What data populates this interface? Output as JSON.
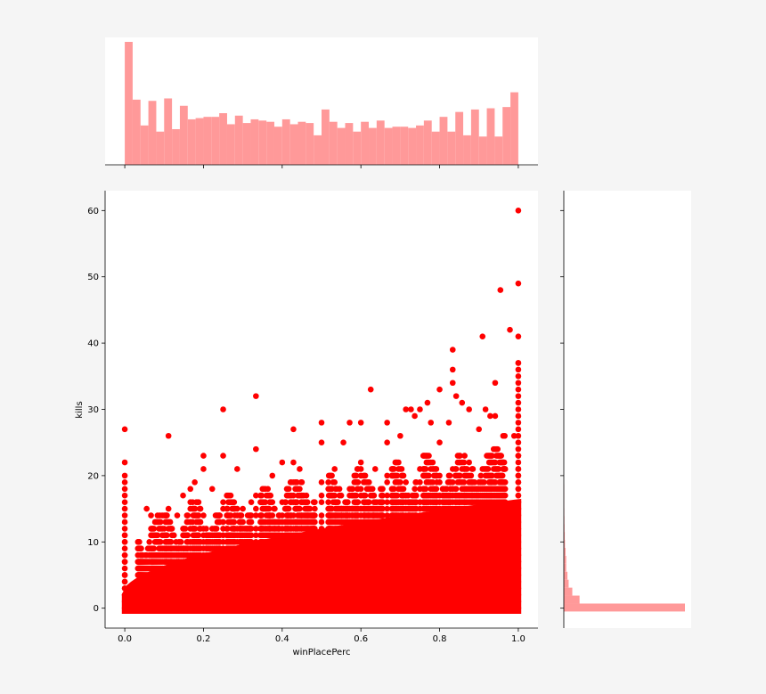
{
  "chart_data": {
    "type": "scatter",
    "title": "",
    "xlabel": "winPlacePerc",
    "ylabel": "kills",
    "xlim": [
      -0.05,
      1.05
    ],
    "ylim": [
      -3,
      63
    ],
    "x_ticks": [
      0.0,
      0.2,
      0.4,
      0.6,
      0.8,
      1.0
    ],
    "x_tick_labels": [
      "0.0",
      "0.2",
      "0.4",
      "0.6",
      "0.8",
      "1.0"
    ],
    "y_ticks": [
      0,
      10,
      20,
      30,
      40,
      50,
      60
    ],
    "y_tick_labels": [
      "0",
      "10",
      "20",
      "30",
      "40",
      "50",
      "60"
    ],
    "grid": false,
    "point_color": "#ff0000",
    "hist_color": "#ff9999",
    "scatter_max_kills": [
      [
        0.0,
        27
      ],
      [
        0.0,
        22
      ],
      [
        0.0333,
        8
      ],
      [
        0.0556,
        15
      ],
      [
        0.0667,
        14
      ],
      [
        0.0889,
        14
      ],
      [
        0.1111,
        26
      ],
      [
        0.1111,
        15
      ],
      [
        0.1333,
        14
      ],
      [
        0.1481,
        17
      ],
      [
        0.1667,
        18
      ],
      [
        0.1778,
        19
      ],
      [
        0.2,
        23
      ],
      [
        0.2,
        21
      ],
      [
        0.2222,
        18
      ],
      [
        0.25,
        30
      ],
      [
        0.25,
        23
      ],
      [
        0.2857,
        21
      ],
      [
        0.3,
        15
      ],
      [
        0.3333,
        32
      ],
      [
        0.3333,
        24
      ],
      [
        0.3571,
        18
      ],
      [
        0.375,
        20
      ],
      [
        0.4,
        22
      ],
      [
        0.4286,
        27
      ],
      [
        0.4286,
        22
      ],
      [
        0.4444,
        21
      ],
      [
        0.4615,
        17
      ],
      [
        0.5,
        28
      ],
      [
        0.5,
        25
      ],
      [
        0.5333,
        21
      ],
      [
        0.5556,
        25
      ],
      [
        0.5714,
        28
      ],
      [
        0.6,
        28
      ],
      [
        0.6,
        22
      ],
      [
        0.625,
        33
      ],
      [
        0.6364,
        21
      ],
      [
        0.6667,
        28
      ],
      [
        0.6667,
        25
      ],
      [
        0.7,
        26
      ],
      [
        0.7143,
        30
      ],
      [
        0.7273,
        30
      ],
      [
        0.7368,
        29
      ],
      [
        0.75,
        30
      ],
      [
        0.7692,
        31
      ],
      [
        0.7778,
        28
      ],
      [
        0.8,
        33
      ],
      [
        0.8,
        25
      ],
      [
        0.8235,
        28
      ],
      [
        0.8333,
        36
      ],
      [
        0.8333,
        34
      ],
      [
        0.8333,
        39
      ],
      [
        0.8421,
        32
      ],
      [
        0.8571,
        31
      ],
      [
        0.875,
        30
      ],
      [
        0.9,
        27
      ],
      [
        0.9091,
        41
      ],
      [
        0.9167,
        30
      ],
      [
        0.9286,
        29
      ],
      [
        0.9412,
        34
      ],
      [
        0.9412,
        29
      ],
      [
        0.9545,
        48
      ],
      [
        0.9615,
        26
      ],
      [
        0.9655,
        26
      ],
      [
        0.9787,
        42
      ],
      [
        0.9894,
        26
      ],
      [
        1.0,
        60
      ],
      [
        1.0,
        49
      ],
      [
        1.0,
        41
      ],
      [
        1.0,
        37
      ]
    ],
    "marginal_x_hist": {
      "bins": 50,
      "range": [
        0,
        1
      ],
      "relative_heights": [
        1.0,
        0.53,
        0.32,
        0.52,
        0.27,
        0.54,
        0.29,
        0.48,
        0.37,
        0.38,
        0.39,
        0.39,
        0.42,
        0.33,
        0.4,
        0.34,
        0.37,
        0.36,
        0.35,
        0.31,
        0.37,
        0.33,
        0.35,
        0.34,
        0.24,
        0.45,
        0.35,
        0.3,
        0.34,
        0.27,
        0.35,
        0.3,
        0.36,
        0.3,
        0.31,
        0.31,
        0.3,
        0.32,
        0.36,
        0.27,
        0.39,
        0.27,
        0.43,
        0.24,
        0.45,
        0.23,
        0.46,
        0.23,
        0.47,
        0.59
      ]
    },
    "marginal_y_hist": {
      "bin_width": 1.2,
      "relative_widths": [
        1.0,
        0.13,
        0.07,
        0.04,
        0.03,
        0.02,
        0.02,
        0.015,
        0.01,
        0.008,
        0.006,
        0.005,
        0.004,
        0.003,
        0.003,
        0.002
      ]
    }
  }
}
